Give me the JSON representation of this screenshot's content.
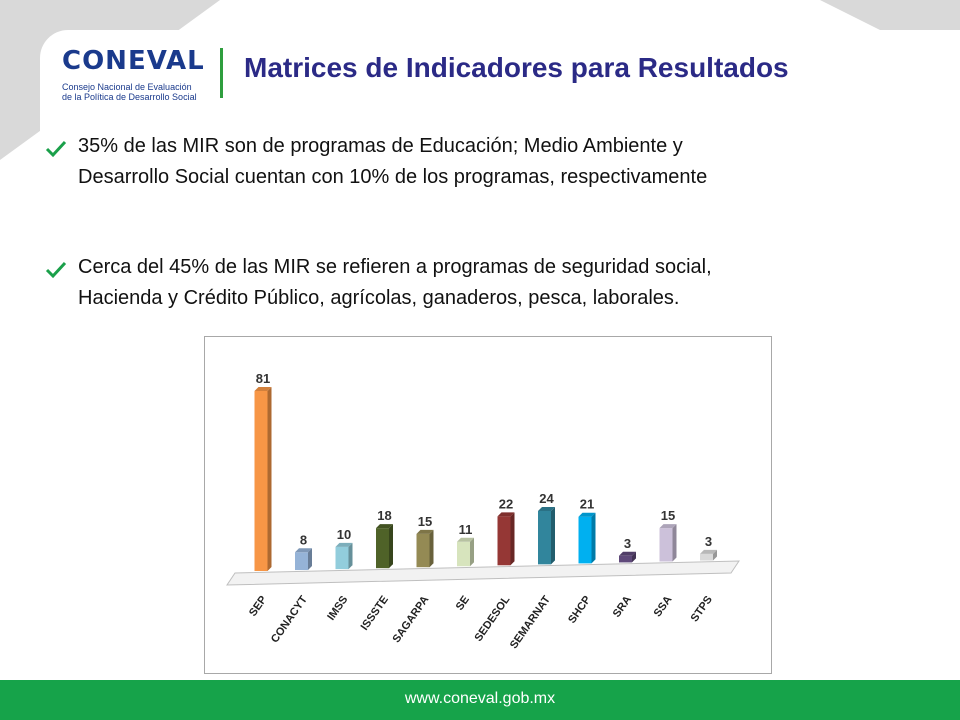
{
  "logo": {
    "name": "CONEVAL",
    "subtitle_line1": "Consejo Nacional de Evaluación",
    "subtitle_line2": "de la Política de Desarrollo Social"
  },
  "title": "Matrices de Indicadores para Resultados",
  "bullets": [
    {
      "line1": "35% de las MIR son de programas de Educación; Medio Ambiente y",
      "line2": "Desarrollo Social cuentan con 10% de los programas, respectivamente"
    },
    {
      "line1": "Cerca del 45% de las MIR se refieren a programas de seguridad social,",
      "line2": "Hacienda y Crédito Público, agrícolas, ganaderos, pesca, laborales."
    }
  ],
  "footer": {
    "url": "www.coneval.gob.mx"
  },
  "colors": {
    "green": "#16a34a",
    "title": "#2b2a86",
    "logo": "#1a3a8c"
  },
  "chart_data": {
    "type": "bar",
    "title": "",
    "xlabel": "",
    "ylabel": "",
    "ylim": [
      0,
      90
    ],
    "grid": false,
    "legend": "none",
    "categories": [
      "SEP",
      "CONACYT",
      "IMSS",
      "ISSSTE",
      "SAGARPA",
      "SE",
      "SEDESOL",
      "SEMARNAT",
      "SHCP",
      "SRA",
      "SSA",
      "STPS"
    ],
    "values": [
      81,
      8,
      10,
      18,
      15,
      11,
      22,
      24,
      21,
      3,
      15,
      3
    ],
    "bar_colors": [
      "#f79646",
      "#95b3d7",
      "#92cddc",
      "#4f6228",
      "#948a54",
      "#d7e4bd",
      "#953735",
      "#31859c",
      "#00b0f0",
      "#5f497a",
      "#ccc1da",
      "#d9d9d9"
    ]
  }
}
